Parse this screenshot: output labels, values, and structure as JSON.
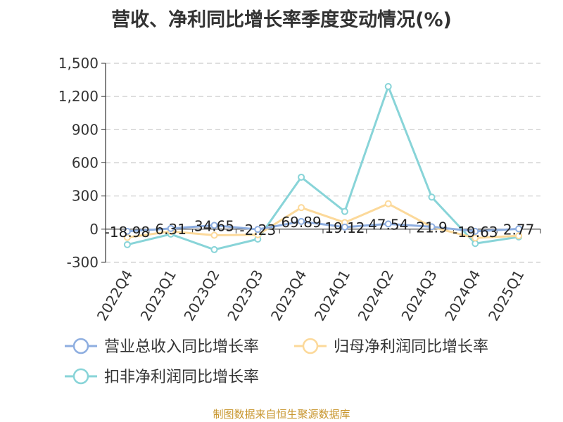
{
  "title": "营收、净利同比增长率季度变动情况(%)",
  "source": "制图数据来自恒生聚源数据库",
  "colors": {
    "revenue": "#8eaee0",
    "net_profit": "#fcd99a",
    "deducted_profit": "#88d4d8",
    "grid": "#cccccc",
    "axis": "#333333"
  },
  "chart_data": {
    "type": "line",
    "title": "营收、净利同比增长率季度变动情况(%)",
    "categories": [
      "2022Q4",
      "2023Q1",
      "2023Q2",
      "2023Q3",
      "2023Q4",
      "2024Q1",
      "2024Q2",
      "2024Q3",
      "2024Q4",
      "2025Q1"
    ],
    "ylim": [
      -300,
      1500
    ],
    "yticks": [
      -300,
      0,
      300,
      600,
      900,
      1200,
      1500
    ],
    "ytick_labels": [
      "-300",
      "0",
      "300",
      "600",
      "900",
      "1,200",
      "1,500"
    ],
    "grid": true,
    "legend_position": "bottom",
    "series": [
      {
        "name": "营业总收入同比增长率",
        "values": [
          -18.98,
          6.31,
          34.65,
          -2.23,
          69.89,
          19.12,
          47.54,
          21.9,
          -19.63,
          2.77
        ],
        "labels": [
          "-18.98",
          "6.31",
          "34.65",
          "-2.23",
          "69.89",
          "19.12",
          "47.54",
          "21.9",
          "-19.63",
          "2.77"
        ]
      },
      {
        "name": "归母净利润同比增长率",
        "values": [
          -75,
          -20,
          -55,
          -50,
          195,
          60,
          230,
          20,
          -80,
          -60
        ]
      },
      {
        "name": "扣非净利润同比增长率",
        "values": [
          -140,
          -45,
          -185,
          -90,
          470,
          160,
          1290,
          290,
          -130,
          -70
        ]
      }
    ]
  }
}
